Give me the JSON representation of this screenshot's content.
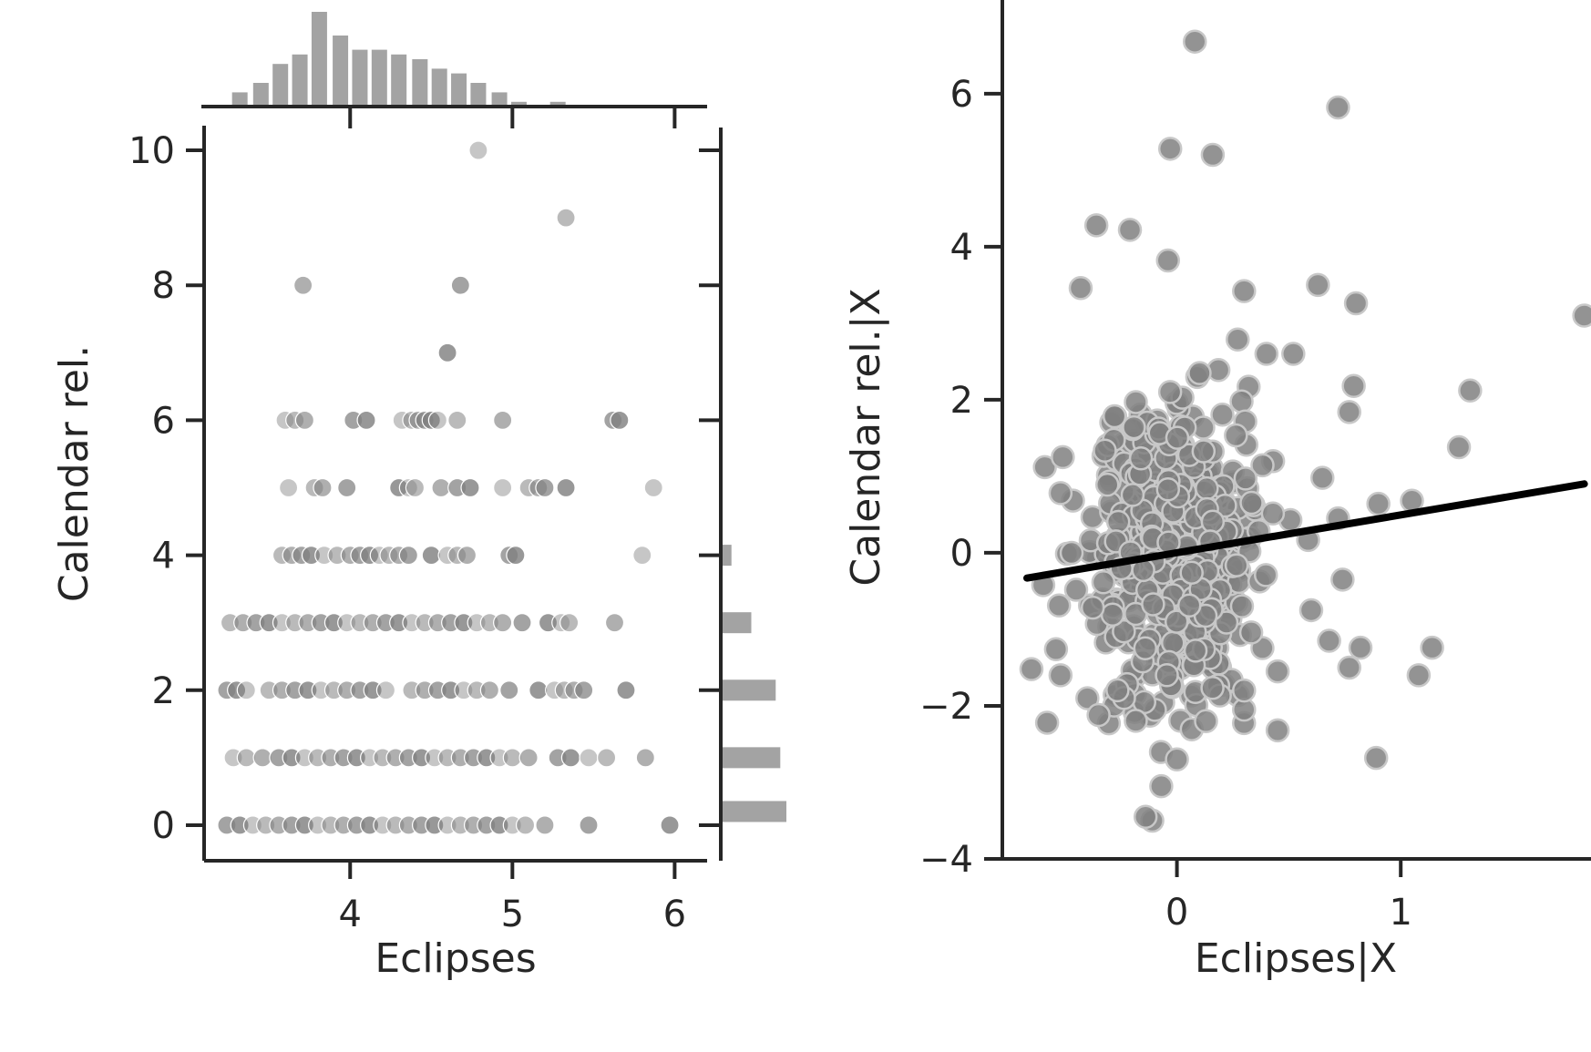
{
  "chart_data": [
    {
      "type": "scatter",
      "subtype": "joint-plot-with-marginal-histograms",
      "xlabel": "Eclipses",
      "ylabel": "Calendar rel.",
      "xlim": [
        3.1,
        6.2
      ],
      "ylim": [
        -0.5,
        10.5
      ],
      "xticks": [
        4,
        5,
        6
      ],
      "yticks": [
        0,
        2,
        4,
        6,
        8,
        10
      ],
      "grid": false,
      "point_color": "#808080",
      "points": [
        {
          "x": 4.79,
          "y": 10
        },
        {
          "x": 5.33,
          "y": 9
        },
        {
          "x": 3.71,
          "y": 8
        },
        {
          "x": 4.68,
          "y": 8
        },
        {
          "x": 4.6,
          "y": 7
        },
        {
          "x": 3.6,
          "y": 6
        },
        {
          "x": 3.66,
          "y": 6
        },
        {
          "x": 3.72,
          "y": 6
        },
        {
          "x": 4.02,
          "y": 6
        },
        {
          "x": 4.1,
          "y": 6
        },
        {
          "x": 4.32,
          "y": 6
        },
        {
          "x": 4.38,
          "y": 6
        },
        {
          "x": 4.42,
          "y": 6
        },
        {
          "x": 4.46,
          "y": 6
        },
        {
          "x": 4.5,
          "y": 6
        },
        {
          "x": 4.54,
          "y": 6
        },
        {
          "x": 4.66,
          "y": 6
        },
        {
          "x": 4.94,
          "y": 6
        },
        {
          "x": 5.62,
          "y": 6
        },
        {
          "x": 5.66,
          "y": 6
        },
        {
          "x": 3.62,
          "y": 5
        },
        {
          "x": 3.78,
          "y": 5
        },
        {
          "x": 3.83,
          "y": 5
        },
        {
          "x": 3.98,
          "y": 5
        },
        {
          "x": 4.3,
          "y": 5
        },
        {
          "x": 4.36,
          "y": 5
        },
        {
          "x": 4.4,
          "y": 5
        },
        {
          "x": 4.56,
          "y": 5
        },
        {
          "x": 4.66,
          "y": 5
        },
        {
          "x": 4.74,
          "y": 5
        },
        {
          "x": 4.94,
          "y": 5
        },
        {
          "x": 5.1,
          "y": 5
        },
        {
          "x": 5.16,
          "y": 5
        },
        {
          "x": 5.2,
          "y": 5
        },
        {
          "x": 5.33,
          "y": 5
        },
        {
          "x": 5.87,
          "y": 5
        },
        {
          "x": 3.58,
          "y": 4
        },
        {
          "x": 3.64,
          "y": 4
        },
        {
          "x": 3.7,
          "y": 4
        },
        {
          "x": 3.76,
          "y": 4
        },
        {
          "x": 3.84,
          "y": 4
        },
        {
          "x": 3.92,
          "y": 4
        },
        {
          "x": 4.0,
          "y": 4
        },
        {
          "x": 4.06,
          "y": 4
        },
        {
          "x": 4.12,
          "y": 4
        },
        {
          "x": 4.18,
          "y": 4
        },
        {
          "x": 4.24,
          "y": 4
        },
        {
          "x": 4.3,
          "y": 4
        },
        {
          "x": 4.36,
          "y": 4
        },
        {
          "x": 4.5,
          "y": 4
        },
        {
          "x": 4.6,
          "y": 4
        },
        {
          "x": 4.66,
          "y": 4
        },
        {
          "x": 4.72,
          "y": 4
        },
        {
          "x": 4.98,
          "y": 4
        },
        {
          "x": 5.02,
          "y": 4
        },
        {
          "x": 5.8,
          "y": 4
        },
        {
          "x": 3.26,
          "y": 3
        },
        {
          "x": 3.34,
          "y": 3
        },
        {
          "x": 3.42,
          "y": 3
        },
        {
          "x": 3.5,
          "y": 3
        },
        {
          "x": 3.58,
          "y": 3
        },
        {
          "x": 3.66,
          "y": 3
        },
        {
          "x": 3.74,
          "y": 3
        },
        {
          "x": 3.82,
          "y": 3
        },
        {
          "x": 3.9,
          "y": 3
        },
        {
          "x": 3.98,
          "y": 3
        },
        {
          "x": 4.06,
          "y": 3
        },
        {
          "x": 4.14,
          "y": 3
        },
        {
          "x": 4.22,
          "y": 3
        },
        {
          "x": 4.3,
          "y": 3
        },
        {
          "x": 4.38,
          "y": 3
        },
        {
          "x": 4.46,
          "y": 3
        },
        {
          "x": 4.54,
          "y": 3
        },
        {
          "x": 4.62,
          "y": 3
        },
        {
          "x": 4.7,
          "y": 3
        },
        {
          "x": 4.78,
          "y": 3
        },
        {
          "x": 4.86,
          "y": 3
        },
        {
          "x": 4.94,
          "y": 3
        },
        {
          "x": 5.06,
          "y": 3
        },
        {
          "x": 5.22,
          "y": 3
        },
        {
          "x": 5.3,
          "y": 3
        },
        {
          "x": 5.35,
          "y": 3
        },
        {
          "x": 5.63,
          "y": 3
        },
        {
          "x": 3.24,
          "y": 2
        },
        {
          "x": 3.3,
          "y": 2
        },
        {
          "x": 3.36,
          "y": 2
        },
        {
          "x": 3.5,
          "y": 2
        },
        {
          "x": 3.58,
          "y": 2
        },
        {
          "x": 3.66,
          "y": 2
        },
        {
          "x": 3.74,
          "y": 2
        },
        {
          "x": 3.82,
          "y": 2
        },
        {
          "x": 3.9,
          "y": 2
        },
        {
          "x": 3.98,
          "y": 2
        },
        {
          "x": 4.06,
          "y": 2
        },
        {
          "x": 4.14,
          "y": 2
        },
        {
          "x": 4.22,
          "y": 2
        },
        {
          "x": 4.38,
          "y": 2
        },
        {
          "x": 4.46,
          "y": 2
        },
        {
          "x": 4.54,
          "y": 2
        },
        {
          "x": 4.62,
          "y": 2
        },
        {
          "x": 4.7,
          "y": 2
        },
        {
          "x": 4.78,
          "y": 2
        },
        {
          "x": 4.86,
          "y": 2
        },
        {
          "x": 4.98,
          "y": 2
        },
        {
          "x": 5.16,
          "y": 2
        },
        {
          "x": 5.26,
          "y": 2
        },
        {
          "x": 5.32,
          "y": 2
        },
        {
          "x": 5.38,
          "y": 2
        },
        {
          "x": 5.44,
          "y": 2
        },
        {
          "x": 5.7,
          "y": 2
        },
        {
          "x": 3.28,
          "y": 1
        },
        {
          "x": 3.36,
          "y": 1
        },
        {
          "x": 3.46,
          "y": 1
        },
        {
          "x": 3.56,
          "y": 1
        },
        {
          "x": 3.64,
          "y": 1
        },
        {
          "x": 3.72,
          "y": 1
        },
        {
          "x": 3.8,
          "y": 1
        },
        {
          "x": 3.88,
          "y": 1
        },
        {
          "x": 3.96,
          "y": 1
        },
        {
          "x": 4.04,
          "y": 1
        },
        {
          "x": 4.12,
          "y": 1
        },
        {
          "x": 4.2,
          "y": 1
        },
        {
          "x": 4.28,
          "y": 1
        },
        {
          "x": 4.36,
          "y": 1
        },
        {
          "x": 4.44,
          "y": 1
        },
        {
          "x": 4.52,
          "y": 1
        },
        {
          "x": 4.6,
          "y": 1
        },
        {
          "x": 4.68,
          "y": 1
        },
        {
          "x": 4.76,
          "y": 1
        },
        {
          "x": 4.84,
          "y": 1
        },
        {
          "x": 4.92,
          "y": 1
        },
        {
          "x": 5.0,
          "y": 1
        },
        {
          "x": 5.1,
          "y": 1
        },
        {
          "x": 5.28,
          "y": 1
        },
        {
          "x": 5.36,
          "y": 1
        },
        {
          "x": 5.47,
          "y": 1
        },
        {
          "x": 5.58,
          "y": 1
        },
        {
          "x": 5.82,
          "y": 1
        },
        {
          "x": 3.24,
          "y": 0
        },
        {
          "x": 3.32,
          "y": 0
        },
        {
          "x": 3.4,
          "y": 0
        },
        {
          "x": 3.48,
          "y": 0
        },
        {
          "x": 3.56,
          "y": 0
        },
        {
          "x": 3.64,
          "y": 0
        },
        {
          "x": 3.72,
          "y": 0
        },
        {
          "x": 3.8,
          "y": 0
        },
        {
          "x": 3.88,
          "y": 0
        },
        {
          "x": 3.96,
          "y": 0
        },
        {
          "x": 4.04,
          "y": 0
        },
        {
          "x": 4.12,
          "y": 0
        },
        {
          "x": 4.2,
          "y": 0
        },
        {
          "x": 4.28,
          "y": 0
        },
        {
          "x": 4.36,
          "y": 0
        },
        {
          "x": 4.44,
          "y": 0
        },
        {
          "x": 4.52,
          "y": 0
        },
        {
          "x": 4.6,
          "y": 0
        },
        {
          "x": 4.68,
          "y": 0
        },
        {
          "x": 4.76,
          "y": 0
        },
        {
          "x": 4.84,
          "y": 0
        },
        {
          "x": 4.92,
          "y": 0
        },
        {
          "x": 5.0,
          "y": 0
        },
        {
          "x": 5.08,
          "y": 0
        },
        {
          "x": 5.2,
          "y": 0
        },
        {
          "x": 5.47,
          "y": 0
        },
        {
          "x": 5.97,
          "y": 0
        }
      ],
      "marginal_x_histogram": {
        "bin_centers": [
          3.32,
          3.45,
          3.57,
          3.69,
          3.81,
          3.94,
          4.06,
          4.18,
          4.3,
          4.43,
          4.55,
          4.67,
          4.79,
          4.92,
          5.04,
          5.28,
          5.41
        ],
        "counts": [
          3,
          5,
          9,
          11,
          20,
          15,
          12,
          12,
          11,
          10,
          8,
          7,
          5,
          3,
          1,
          1,
          0.3
        ]
      },
      "marginal_y_histogram": {
        "bin_centers": [
          0,
          1,
          2,
          3,
          4
        ],
        "counts": [
          43,
          39,
          36,
          20,
          7
        ]
      }
    },
    {
      "type": "scatter",
      "subtype": "partial-regression-plot",
      "xlabel": "Eclipses|X",
      "ylabel": "Calendar rel.|X",
      "xlim": [
        -0.78,
        1.85
      ],
      "ylim": [
        -4.0,
        7.2
      ],
      "xticks": [
        0,
        1
      ],
      "yticks": [
        -4,
        -2,
        0,
        2,
        4,
        6
      ],
      "ytick_labels": [
        "−4",
        "−2",
        "0",
        "2",
        "4",
        "6"
      ],
      "grid": false,
      "point_color": "#808080",
      "regression_line": {
        "color": "#000000",
        "x": [
          -0.67,
          1.82
        ],
        "y": [
          -0.33,
          0.9
        ]
      },
      "outlier_points": [
        {
          "x": 0.08,
          "y": 6.68
        },
        {
          "x": 0.72,
          "y": 5.82
        },
        {
          "x": -0.03,
          "y": 5.28
        },
        {
          "x": 0.16,
          "y": 5.2
        },
        {
          "x": -0.36,
          "y": 4.28
        },
        {
          "x": -0.21,
          "y": 4.22
        },
        {
          "x": -0.04,
          "y": 3.82
        },
        {
          "x": 0.3,
          "y": 3.42
        },
        {
          "x": 0.63,
          "y": 3.5
        },
        {
          "x": -0.43,
          "y": 3.46
        },
        {
          "x": 0.8,
          "y": 3.26
        },
        {
          "x": 1.82,
          "y": 3.1
        },
        {
          "x": 0.52,
          "y": 2.6
        },
        {
          "x": 0.4,
          "y": 2.6
        },
        {
          "x": 1.31,
          "y": 2.12
        },
        {
          "x": 0.79,
          "y": 2.18
        },
        {
          "x": 0.77,
          "y": 1.84
        },
        {
          "x": 1.26,
          "y": 1.38
        },
        {
          "x": -0.59,
          "y": 1.12
        },
        {
          "x": -0.51,
          "y": 1.25
        },
        {
          "x": -0.52,
          "y": 0.78
        },
        {
          "x": 0.65,
          "y": 0.98
        },
        {
          "x": 1.05,
          "y": 0.68
        },
        {
          "x": 0.9,
          "y": 0.64
        },
        {
          "x": 0.72,
          "y": 0.45
        },
        {
          "x": -0.65,
          "y": -1.52
        },
        {
          "x": -0.58,
          "y": -2.22
        },
        {
          "x": -0.52,
          "y": -1.6
        },
        {
          "x": 0.77,
          "y": -1.5
        },
        {
          "x": 0.82,
          "y": -1.24
        },
        {
          "x": 1.14,
          "y": -1.24
        },
        {
          "x": 1.08,
          "y": -1.6
        },
        {
          "x": 0.89,
          "y": -2.68
        },
        {
          "x": 0.74,
          "y": -0.35
        },
        {
          "x": 0.6,
          "y": -0.75
        },
        {
          "x": 0.68,
          "y": -1.15
        },
        {
          "x": 0.45,
          "y": -2.32
        },
        {
          "x": -0.11,
          "y": -3.5
        },
        {
          "x": -0.14,
          "y": -3.45
        },
        {
          "x": -0.07,
          "y": -3.05
        },
        {
          "x": 0.0,
          "y": -2.7
        },
        {
          "x": 0.13,
          "y": -2.2
        },
        {
          "x": -0.4,
          "y": -1.9
        },
        {
          "x": -0.35,
          "y": -2.12
        },
        {
          "x": 0.3,
          "y": -2.05
        },
        {
          "x": 0.3,
          "y": -1.8
        },
        {
          "x": 0.45,
          "y": -1.55
        }
      ]
    }
  ]
}
